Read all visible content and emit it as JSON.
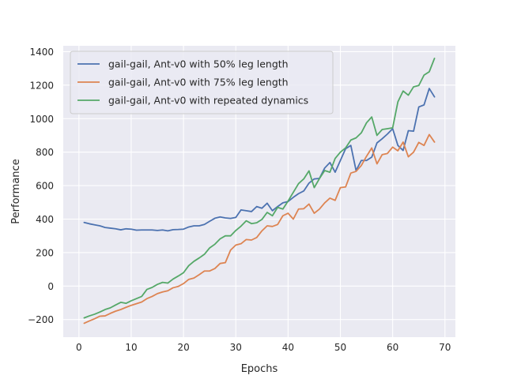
{
  "chart_data": {
    "type": "line",
    "title": "",
    "xlabel": "Epochs",
    "ylabel": "Performance",
    "xlim": [
      -3,
      72
    ],
    "ylim": [
      -305,
      1435
    ],
    "xticks": [
      0,
      10,
      20,
      30,
      40,
      50,
      60,
      70
    ],
    "yticks": [
      -200,
      0,
      200,
      400,
      600,
      800,
      1000,
      1200,
      1400
    ],
    "grid": true,
    "legend_position": "top-left",
    "background_color": "#eaeaf2",
    "grid_color": "#ffffff",
    "series": [
      {
        "name": "gail-gail, Ant-v0 with 50% leg length",
        "color": "#4c72b0",
        "x": [
          1,
          2,
          3,
          4,
          5,
          6,
          7,
          8,
          9,
          10,
          11,
          12,
          13,
          14,
          15,
          16,
          17,
          18,
          19,
          20,
          21,
          22,
          23,
          24,
          25,
          26,
          27,
          28,
          29,
          30,
          31,
          32,
          33,
          34,
          35,
          36,
          37,
          38,
          39,
          40,
          41,
          42,
          43,
          44,
          45,
          46,
          47,
          48,
          49,
          50,
          51,
          52,
          53,
          54,
          55,
          56,
          57,
          58,
          59,
          60,
          61,
          62,
          63,
          64,
          65,
          66,
          67,
          68
        ],
        "values": [
          380,
          372,
          366,
          360,
          350,
          346,
          342,
          336,
          342,
          340,
          334,
          335,
          335,
          335,
          332,
          335,
          330,
          337,
          338,
          340,
          353,
          360,
          360,
          368,
          387,
          405,
          413,
          407,
          404,
          410,
          455,
          450,
          445,
          475,
          465,
          495,
          450,
          475,
          497,
          505,
          530,
          552,
          568,
          615,
          640,
          643,
          705,
          738,
          680,
          750,
          820,
          840,
          690,
          750,
          750,
          770,
          855,
          880,
          908,
          940,
          840,
          810,
          928,
          925,
          1070,
          1082,
          1180,
          1130
        ]
      },
      {
        "name": "gail-gail, Ant-v0 with 75% leg length",
        "color": "#dd8452",
        "x": [
          1,
          2,
          3,
          4,
          5,
          6,
          7,
          8,
          9,
          10,
          11,
          12,
          13,
          14,
          15,
          16,
          17,
          18,
          19,
          20,
          21,
          22,
          23,
          24,
          25,
          26,
          27,
          28,
          29,
          30,
          31,
          32,
          33,
          34,
          35,
          36,
          37,
          38,
          39,
          40,
          41,
          42,
          43,
          44,
          45,
          46,
          47,
          48,
          49,
          50,
          51,
          52,
          53,
          54,
          55,
          56,
          57,
          58,
          59,
          60,
          61,
          62,
          63,
          64,
          65,
          66,
          67,
          68
        ],
        "values": [
          -222,
          -208,
          -195,
          -180,
          -178,
          -163,
          -150,
          -140,
          -127,
          -115,
          -105,
          -95,
          -75,
          -62,
          -45,
          -35,
          -28,
          -10,
          -2,
          15,
          40,
          48,
          68,
          90,
          90,
          105,
          135,
          140,
          215,
          245,
          253,
          278,
          275,
          290,
          330,
          360,
          356,
          368,
          420,
          435,
          400,
          460,
          462,
          490,
          435,
          460,
          497,
          525,
          512,
          588,
          592,
          675,
          685,
          720,
          775,
          825,
          730,
          785,
          792,
          830,
          808,
          860,
          772,
          800,
          858,
          840,
          905,
          860
        ]
      },
      {
        "name": "gail-gail, Ant-v0 with repeated dynamics",
        "color": "#55a868",
        "x": [
          1,
          2,
          3,
          4,
          5,
          6,
          7,
          8,
          9,
          10,
          11,
          12,
          13,
          14,
          15,
          16,
          17,
          18,
          19,
          20,
          21,
          22,
          23,
          24,
          25,
          26,
          27,
          28,
          29,
          30,
          31,
          32,
          33,
          34,
          35,
          36,
          37,
          38,
          39,
          40,
          41,
          42,
          43,
          44,
          45,
          46,
          47,
          48,
          49,
          50,
          51,
          52,
          53,
          54,
          55,
          56,
          57,
          58,
          59,
          60,
          61,
          62,
          63,
          64,
          65,
          66,
          67,
          68
        ],
        "values": [
          -190,
          -178,
          -168,
          -155,
          -140,
          -130,
          -113,
          -97,
          -103,
          -88,
          -75,
          -62,
          -20,
          -8,
          10,
          22,
          18,
          42,
          60,
          80,
          122,
          148,
          168,
          190,
          228,
          250,
          282,
          300,
          300,
          332,
          358,
          390,
          373,
          378,
          398,
          440,
          420,
          470,
          460,
          508,
          560,
          612,
          640,
          688,
          588,
          642,
          690,
          680,
          762,
          800,
          825,
          872,
          885,
          915,
          975,
          1010,
          900,
          935,
          940,
          945,
          1100,
          1165,
          1140,
          1190,
          1198,
          1260,
          1280,
          1360
        ]
      }
    ]
  }
}
